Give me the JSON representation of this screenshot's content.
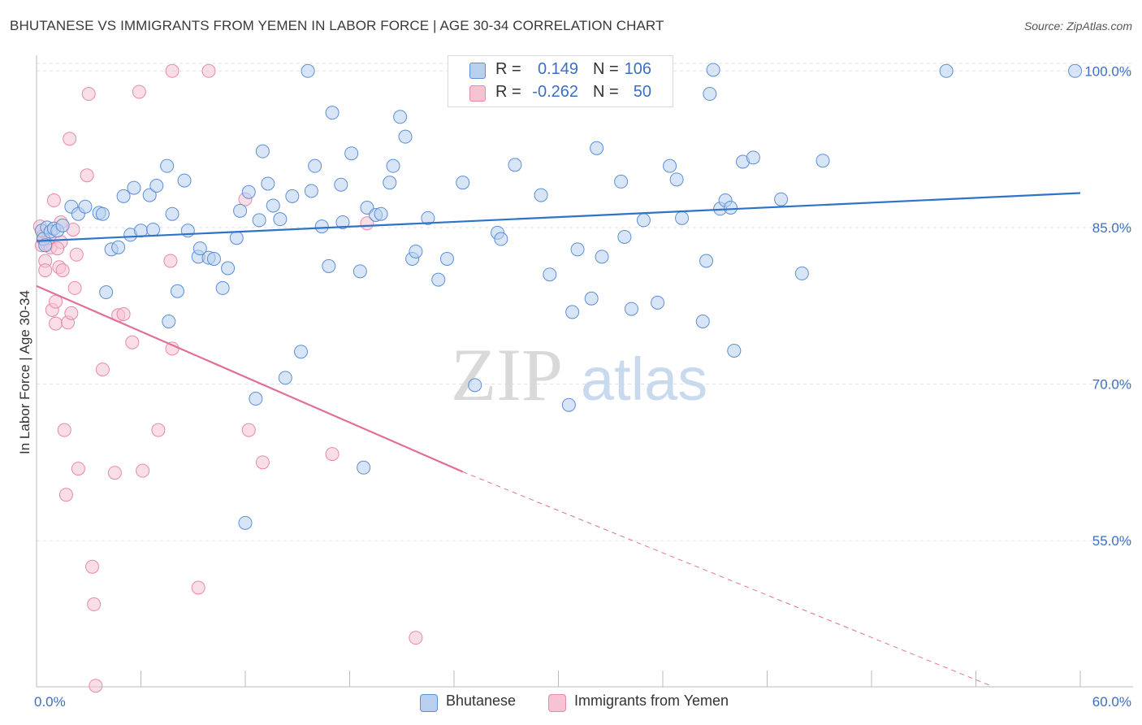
{
  "header": {
    "title": "BHUTANESE VS IMMIGRANTS FROM YEMEN IN LABOR FORCE | AGE 30-34 CORRELATION CHART",
    "source": "Source: ZipAtlas.com"
  },
  "watermark": {
    "part1": "ZIP",
    "part2": "atlas"
  },
  "colors": {
    "blue_fill": "#b8d0ee",
    "blue_stroke": "#5b8fd6",
    "blue_line": "#2f73c9",
    "pink_fill": "#f6c3d3",
    "pink_stroke": "#e88aa8",
    "pink_line": "#e0709a",
    "tick_label": "#3b6fc4",
    "grid": "#e2e2e2"
  },
  "legend": {
    "rows": [
      {
        "r_label": "R =",
        "r_value": "0.149",
        "n_label": "N =",
        "n_value": "106"
      },
      {
        "r_label": "R =",
        "r_value": "-0.262",
        "n_label": "N =",
        "n_value": "50"
      }
    ]
  },
  "bottom_legend": [
    {
      "label": "Bhutanese"
    },
    {
      "label": "Immigrants from Yemen"
    }
  ],
  "chart_data": {
    "type": "scatter",
    "title": "BHUTANESE VS IMMIGRANTS FROM YEMEN IN LABOR FORCE | AGE 30-34 CORRELATION CHART",
    "xlabel": "",
    "ylabel": "In Labor Force | Age 30-34",
    "xlim": [
      0,
      60
    ],
    "ylim": [
      41,
      101.5
    ],
    "x_tick_labels": [
      "0.0%",
      "60.0%"
    ],
    "y_ticks": [
      55,
      70,
      85,
      100
    ],
    "y_tick_labels": [
      "55.0%",
      "70.0%",
      "85.0%",
      "100.0%"
    ],
    "grid": "horizontal dashed",
    "legend_position": "top-center",
    "series": [
      {
        "name": "Bhutanese",
        "r": 0.149,
        "n": 106,
        "trend": {
          "x": [
            0,
            60
          ],
          "y": [
            83.7,
            88.3
          ]
        },
        "points": [
          [
            0.3,
            84.7
          ],
          [
            0.4,
            83.9
          ],
          [
            0.5,
            83.3
          ],
          [
            0.6,
            85.0
          ],
          [
            0.8,
            84.6
          ],
          [
            1.0,
            84.9
          ],
          [
            1.2,
            84.7
          ],
          [
            1.5,
            85.2
          ],
          [
            2.0,
            87.0
          ],
          [
            2.4,
            86.3
          ],
          [
            2.8,
            87.0
          ],
          [
            3.6,
            86.4
          ],
          [
            3.8,
            86.3
          ],
          [
            4.3,
            82.9
          ],
          [
            4.7,
            83.1
          ],
          [
            4.0,
            78.8
          ],
          [
            5.0,
            88.0
          ],
          [
            5.4,
            84.3
          ],
          [
            5.6,
            88.8
          ],
          [
            6.0,
            84.7
          ],
          [
            6.5,
            88.1
          ],
          [
            6.7,
            84.8
          ],
          [
            6.9,
            89.0
          ],
          [
            7.5,
            90.9
          ],
          [
            7.6,
            76.0
          ],
          [
            7.8,
            86.3
          ],
          [
            8.1,
            78.9
          ],
          [
            8.5,
            89.5
          ],
          [
            8.7,
            84.7
          ],
          [
            9.3,
            82.2
          ],
          [
            9.4,
            83.0
          ],
          [
            9.9,
            82.1
          ],
          [
            10.2,
            82.0
          ],
          [
            10.7,
            79.2
          ],
          [
            11.0,
            81.1
          ],
          [
            11.5,
            84.0
          ],
          [
            11.7,
            86.6
          ],
          [
            12.0,
            56.7
          ],
          [
            12.2,
            88.4
          ],
          [
            12.6,
            68.6
          ],
          [
            12.8,
            85.7
          ],
          [
            13.0,
            92.3
          ],
          [
            13.3,
            89.2
          ],
          [
            13.6,
            87.1
          ],
          [
            14.0,
            85.8
          ],
          [
            14.3,
            70.6
          ],
          [
            14.7,
            88.0
          ],
          [
            15.2,
            73.1
          ],
          [
            15.6,
            100.0
          ],
          [
            15.8,
            88.5
          ],
          [
            16.0,
            90.9
          ],
          [
            16.4,
            85.1
          ],
          [
            16.8,
            81.3
          ],
          [
            17.0,
            96.0
          ],
          [
            17.5,
            89.1
          ],
          [
            17.6,
            85.5
          ],
          [
            18.1,
            92.1
          ],
          [
            18.6,
            80.8
          ],
          [
            19.0,
            86.9
          ],
          [
            19.5,
            86.2
          ],
          [
            19.8,
            86.3
          ],
          [
            20.3,
            89.3
          ],
          [
            20.5,
            90.9
          ],
          [
            20.9,
            95.6
          ],
          [
            21.2,
            93.7
          ],
          [
            21.6,
            82.0
          ],
          [
            21.8,
            82.7
          ],
          [
            22.5,
            85.9
          ],
          [
            23.1,
            80.0
          ],
          [
            23.6,
            82.0
          ],
          [
            24.5,
            89.3
          ],
          [
            25.2,
            69.9
          ],
          [
            26.5,
            84.5
          ],
          [
            26.7,
            83.9
          ],
          [
            27.5,
            91.0
          ],
          [
            28.6,
            100.0
          ],
          [
            29.0,
            88.1
          ],
          [
            29.5,
            80.5
          ],
          [
            30.6,
            68.0
          ],
          [
            30.8,
            76.9
          ],
          [
            31.1,
            82.9
          ],
          [
            31.9,
            78.2
          ],
          [
            32.2,
            92.6
          ],
          [
            32.5,
            82.2
          ],
          [
            33.6,
            89.4
          ],
          [
            33.8,
            84.1
          ],
          [
            34.2,
            77.2
          ],
          [
            34.9,
            85.7
          ],
          [
            35.7,
            77.8
          ],
          [
            36.4,
            90.9
          ],
          [
            36.8,
            89.6
          ],
          [
            37.1,
            85.9
          ],
          [
            38.3,
            76.0
          ],
          [
            38.5,
            81.8
          ],
          [
            38.7,
            97.8
          ],
          [
            39.3,
            86.8
          ],
          [
            39.6,
            87.6
          ],
          [
            39.9,
            86.9
          ],
          [
            40.1,
            73.2
          ],
          [
            40.6,
            91.3
          ],
          [
            41.2,
            91.7
          ],
          [
            42.8,
            87.7
          ],
          [
            44.0,
            80.6
          ],
          [
            45.2,
            91.4
          ],
          [
            52.3,
            100.0
          ],
          [
            59.7,
            100.0
          ],
          [
            18.8,
            62.0
          ],
          [
            38.9,
            100.1
          ]
        ]
      },
      {
        "name": "Immigrants from Yemen",
        "r": -0.262,
        "n": 50,
        "trend": {
          "x": [
            0,
            24.5
          ],
          "y": [
            79.4,
            61.6
          ]
        },
        "trend_dashed": {
          "x": [
            24.5,
            55
          ],
          "y": [
            61.6,
            41.0
          ]
        },
        "points": [
          [
            0.2,
            85.1
          ],
          [
            0.3,
            83.3
          ],
          [
            0.4,
            84.2
          ],
          [
            0.5,
            81.8
          ],
          [
            0.5,
            80.9
          ],
          [
            0.6,
            83.4
          ],
          [
            0.8,
            83.1
          ],
          [
            0.9,
            77.1
          ],
          [
            1.0,
            87.6
          ],
          [
            1.1,
            77.9
          ],
          [
            1.1,
            75.8
          ],
          [
            1.3,
            81.2
          ],
          [
            1.4,
            85.5
          ],
          [
            1.4,
            83.6
          ],
          [
            1.5,
            80.9
          ],
          [
            1.6,
            65.6
          ],
          [
            1.7,
            59.4
          ],
          [
            1.8,
            75.9
          ],
          [
            1.9,
            93.5
          ],
          [
            2.0,
            76.8
          ],
          [
            2.1,
            84.8
          ],
          [
            2.2,
            79.2
          ],
          [
            2.3,
            82.4
          ],
          [
            2.4,
            61.9
          ],
          [
            2.9,
            90.0
          ],
          [
            3.0,
            97.8
          ],
          [
            3.2,
            52.5
          ],
          [
            3.3,
            48.9
          ],
          [
            3.4,
            41.1
          ],
          [
            3.8,
            71.4
          ],
          [
            4.5,
            61.5
          ],
          [
            4.7,
            76.6
          ],
          [
            5.0,
            76.7
          ],
          [
            5.5,
            74.0
          ],
          [
            5.9,
            98.0
          ],
          [
            6.1,
            61.7
          ],
          [
            7.0,
            65.6
          ],
          [
            7.7,
            81.8
          ],
          [
            7.8,
            73.4
          ],
          [
            7.8,
            100.0
          ],
          [
            9.3,
            50.5
          ],
          [
            9.9,
            100.0
          ],
          [
            12.0,
            87.7
          ],
          [
            12.2,
            65.6
          ],
          [
            13.0,
            62.5
          ],
          [
            17.0,
            63.3
          ],
          [
            19.0,
            85.4
          ],
          [
            21.8,
            45.7
          ],
          [
            0.7,
            84.0
          ],
          [
            1.2,
            83.0
          ]
        ]
      }
    ]
  }
}
